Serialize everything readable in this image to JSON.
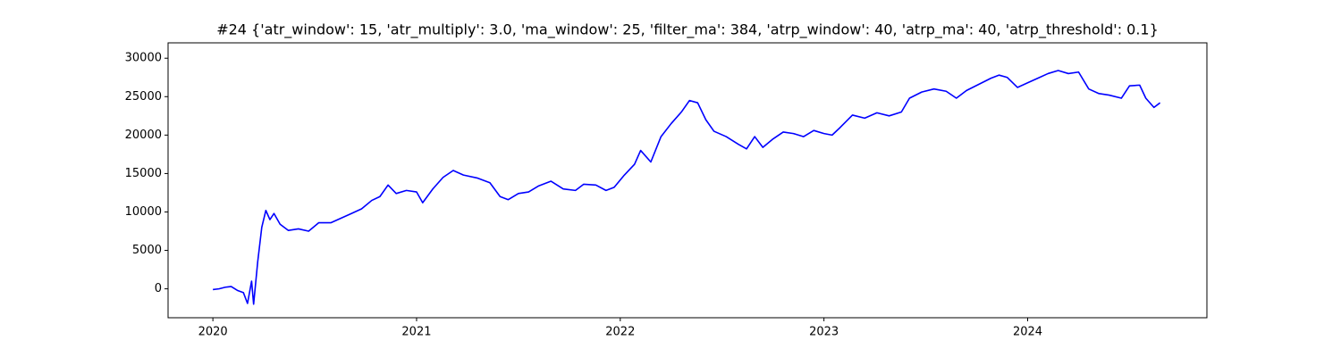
{
  "chart_data": {
    "type": "line",
    "title": "#24 {'atr_window': 15, 'atr_multiply': 3.0, 'ma_window': 25, 'filter_ma': 384, 'atrp_window': 40, 'atrp_ma': 40, 'atrp_threshold': 0.1}",
    "x": [
      2020.0,
      2020.03,
      2020.06,
      2020.09,
      2020.12,
      2020.15,
      2020.17,
      2020.19,
      2020.2,
      2020.22,
      2020.24,
      2020.26,
      2020.28,
      2020.3,
      2020.33,
      2020.37,
      2020.42,
      2020.47,
      2020.52,
      2020.58,
      2020.63,
      2020.68,
      2020.73,
      2020.78,
      2020.82,
      2020.86,
      2020.9,
      2020.95,
      2021.0,
      2021.03,
      2021.08,
      2021.13,
      2021.18,
      2021.23,
      2021.3,
      2021.36,
      2021.41,
      2021.45,
      2021.5,
      2021.55,
      2021.6,
      2021.66,
      2021.72,
      2021.78,
      2021.82,
      2021.88,
      2021.93,
      2021.97,
      2022.02,
      2022.07,
      2022.1,
      2022.15,
      2022.2,
      2022.25,
      2022.3,
      2022.34,
      2022.38,
      2022.42,
      2022.46,
      2022.52,
      2022.58,
      2022.62,
      2022.66,
      2022.7,
      2022.75,
      2022.8,
      2022.85,
      2022.9,
      2022.95,
      2023.0,
      2023.04,
      2023.08,
      2023.14,
      2023.2,
      2023.26,
      2023.32,
      2023.38,
      2023.42,
      2023.48,
      2023.54,
      2023.6,
      2023.65,
      2023.7,
      2023.76,
      2023.82,
      2023.86,
      2023.9,
      2023.95,
      2024.0,
      2024.05,
      2024.1,
      2024.15,
      2024.2,
      2024.25,
      2024.3,
      2024.35,
      2024.4,
      2024.46,
      2024.5,
      2024.55,
      2024.58,
      2024.62,
      2024.65
    ],
    "series": [
      {
        "color": "#0000ff",
        "values": [
          -100,
          0,
          200,
          300,
          -200,
          -500,
          -1900,
          1000,
          -2000,
          3500,
          8000,
          10200,
          9000,
          9800,
          8400,
          7600,
          7800,
          7500,
          8600,
          8600,
          9200,
          9800,
          10400,
          11500,
          12000,
          13500,
          12400,
          12800,
          12600,
          11200,
          13000,
          14500,
          15400,
          14800,
          14400,
          13800,
          12000,
          11600,
          12400,
          12600,
          13400,
          14000,
          13000,
          12800,
          13600,
          13500,
          12800,
          13200,
          14800,
          16200,
          18000,
          16500,
          19800,
          21500,
          23000,
          24500,
          24200,
          22000,
          20500,
          19800,
          18800,
          18200,
          19800,
          18400,
          19500,
          20400,
          20200,
          19800,
          20600,
          20200,
          20000,
          21000,
          22600,
          22200,
          22900,
          22500,
          23000,
          24800,
          25600,
          26000,
          25700,
          24800,
          25800,
          26600,
          27400,
          27800,
          27500,
          26200,
          26800,
          27400,
          28000,
          28400,
          28000,
          28200,
          26000,
          25400,
          25200,
          24800,
          26400,
          26500,
          24800,
          23600,
          24200
        ]
      }
    ],
    "xlim": [
      2019.78,
      2024.88
    ],
    "xticks": [
      2020,
      2021,
      2022,
      2023,
      2024
    ],
    "ylim": [
      -3760,
      32000
    ],
    "yticks": [
      0,
      5000,
      10000,
      15000,
      20000,
      25000,
      30000
    ]
  }
}
